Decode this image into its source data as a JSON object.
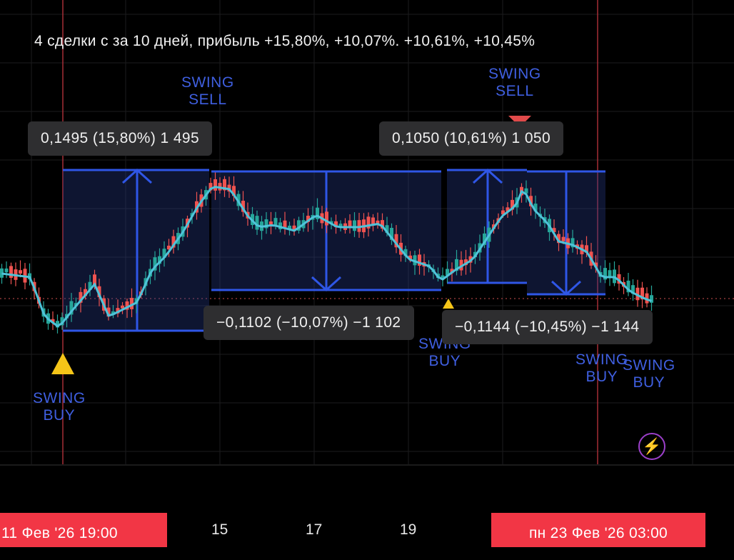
{
  "headline": "4 сделки с за 10 дней, прибыль +15,80%, +10,07%. +10,61%, +10,45%",
  "signals": {
    "buy1": "SWING\nBUY",
    "sell1": "SWING\nSELL",
    "sell2": "SWING\nSELL",
    "buy2": "SWING\nBUY",
    "buy3": "SWING\nBUY",
    "buy4": "SWING\nBUY"
  },
  "measurements": {
    "m1": "0,1495 (15,80%) 1 495",
    "m2": "−0,1102 (−10,07%) −1 102",
    "m3": "0,1050 (10,61%) 1 050",
    "m4": "−0,1144 (−10,45%) −1 144"
  },
  "time_axis": {
    "start_badge": "11 Фев '26   19:00",
    "ticks": [
      "15",
      "17",
      "19"
    ],
    "end_badge": "пн 23 Фев '26   03:00"
  },
  "icons": {
    "bolt": "lightning-bolt-icon"
  },
  "colors": {
    "up": "#26a69a",
    "down": "#ef5350",
    "ma": "#4fc3d9",
    "measure": "#2f56e6",
    "signal_text": "#3f5fe0"
  }
}
